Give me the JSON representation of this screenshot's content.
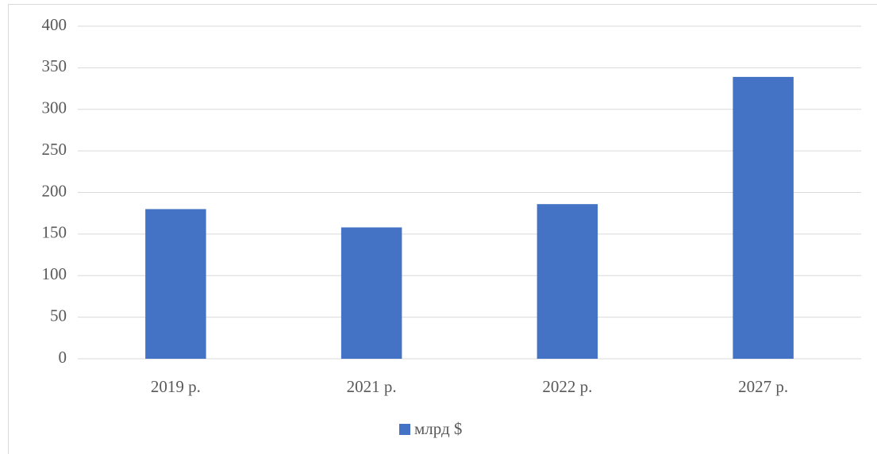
{
  "chart_data": {
    "type": "bar",
    "categories": [
      "2019 р.",
      "2021 р.",
      "2022 р.",
      "2027 р."
    ],
    "series": [
      {
        "name": "млрд $",
        "color": "#4472c4",
        "values": [
          180,
          158,
          186,
          339
        ]
      }
    ],
    "ylim": [
      0,
      400
    ],
    "yticks": [
      0,
      50,
      100,
      150,
      200,
      250,
      300,
      350,
      400
    ],
    "grid": true,
    "legend": "bottom"
  }
}
